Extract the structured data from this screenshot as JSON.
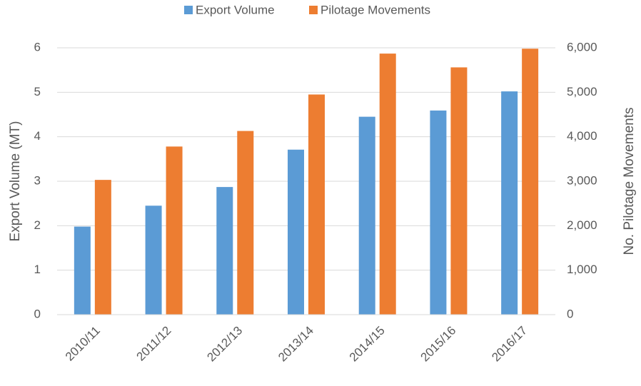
{
  "chart_data": {
    "type": "bar",
    "categories": [
      "2010/11",
      "2011/12",
      "2012/13",
      "2013/14",
      "2014/15",
      "2015/16",
      "2016/17"
    ],
    "series": [
      {
        "name": "Export Volume",
        "color": "#5b9bd5",
        "values": [
          1.98,
          2.45,
          2.87,
          3.71,
          4.45,
          4.59,
          5.02
        ]
      },
      {
        "name": "Pilotage Movements",
        "color": "#ed7d31",
        "axis": "y2",
        "values": [
          3030,
          3780,
          4130,
          4950,
          5870,
          5560,
          5980
        ]
      }
    ],
    "y_label": "Export Volume (MT)",
    "y2_label": "No. Pilotage Movements",
    "ylim": [
      0,
      6
    ],
    "yticks": [
      0,
      1,
      2,
      3,
      4,
      5,
      6
    ],
    "y2lim": [
      0,
      6000
    ],
    "y2ticks": [
      0,
      {
        "value": 1000,
        "label": "1,000"
      },
      {
        "value": 2000,
        "label": "2,000"
      },
      {
        "value": 3000,
        "label": "3,000"
      },
      {
        "value": 4000,
        "label": "4,000"
      },
      {
        "value": 5000,
        "label": "5,000"
      },
      {
        "value": 6000,
        "label": "6,000"
      }
    ],
    "grid": true,
    "legend": "top"
  }
}
